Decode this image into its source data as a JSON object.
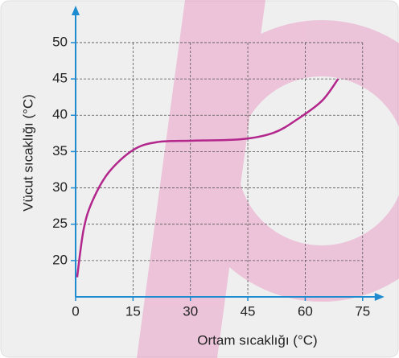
{
  "chart_data": {
    "type": "line",
    "x_label": "Ortam sıcaklığı (°C)",
    "y_label": "Vücut sıcaklığı (°C)",
    "x": [
      0.4,
      2.1,
      4.4,
      8.6,
      15,
      21.3,
      30.7,
      43.4,
      51.8,
      58.1,
      64.4,
      68.6
    ],
    "series": [
      {
        "color": "#b3268c",
        "values": [
          17.7,
          24.3,
          28.2,
          32.1,
          35.2,
          36.3,
          36.5,
          36.7,
          37.6,
          39.5,
          42,
          45
        ]
      }
    ],
    "xlim": [
      0,
      79
    ],
    "ylim": [
      15,
      54.2
    ],
    "xticks": [
      0,
      15,
      30,
      45,
      60,
      75
    ],
    "yticks": [
      20,
      25,
      30,
      35,
      40,
      45,
      50
    ],
    "grid": true,
    "axis_color": "#1e8bd0"
  }
}
